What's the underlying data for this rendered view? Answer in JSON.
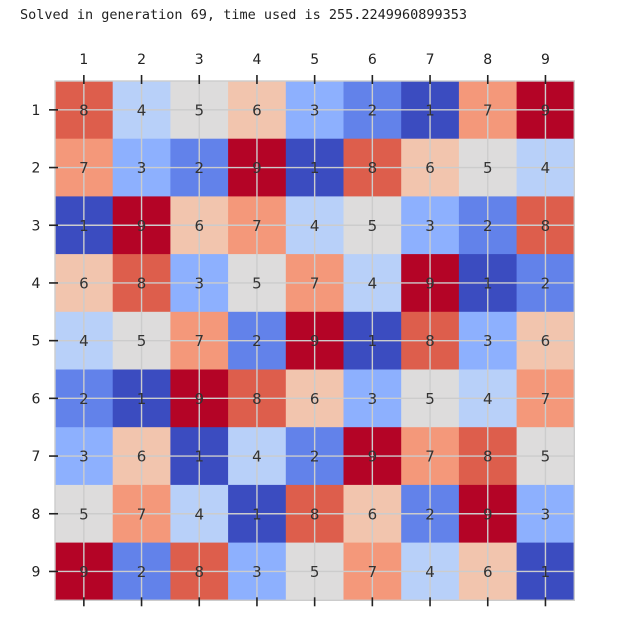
{
  "output": {
    "status_text": "Solved in generation 69, time used is 255.2249960899353"
  },
  "chart_data": {
    "type": "heatmap",
    "title": "",
    "xlabel": "",
    "ylabel": "",
    "colormap": "coolwarm",
    "x_tick_labels": [
      "1",
      "2",
      "3",
      "4",
      "5",
      "6",
      "7",
      "8",
      "9"
    ],
    "y_tick_labels": [
      "1",
      "2",
      "3",
      "4",
      "5",
      "6",
      "7",
      "8",
      "9"
    ],
    "grid": true,
    "grid_color": "#cccccc",
    "value_range": [
      1,
      9
    ],
    "color_scale": {
      "1": "#3b4cc0",
      "2": "#6282ea",
      "3": "#8db0fe",
      "4": "#b8d0f9",
      "5": "#dddcdc",
      "6": "#f2c5ae",
      "7": "#f4987a",
      "8": "#dd5e4c",
      "9": "#b40426"
    },
    "values": [
      [
        8,
        4,
        5,
        6,
        3,
        2,
        1,
        7,
        9
      ],
      [
        7,
        3,
        2,
        9,
        1,
        8,
        6,
        5,
        4
      ],
      [
        1,
        9,
        6,
        7,
        4,
        5,
        3,
        2,
        8
      ],
      [
        6,
        8,
        3,
        5,
        7,
        4,
        9,
        1,
        2
      ],
      [
        4,
        5,
        7,
        2,
        9,
        1,
        8,
        3,
        6
      ],
      [
        2,
        1,
        9,
        8,
        6,
        3,
        5,
        4,
        7
      ],
      [
        3,
        6,
        1,
        4,
        2,
        9,
        7,
        8,
        5
      ],
      [
        5,
        7,
        4,
        1,
        8,
        6,
        2,
        9,
        3
      ],
      [
        9,
        2,
        8,
        3,
        5,
        7,
        4,
        6,
        1
      ]
    ]
  }
}
